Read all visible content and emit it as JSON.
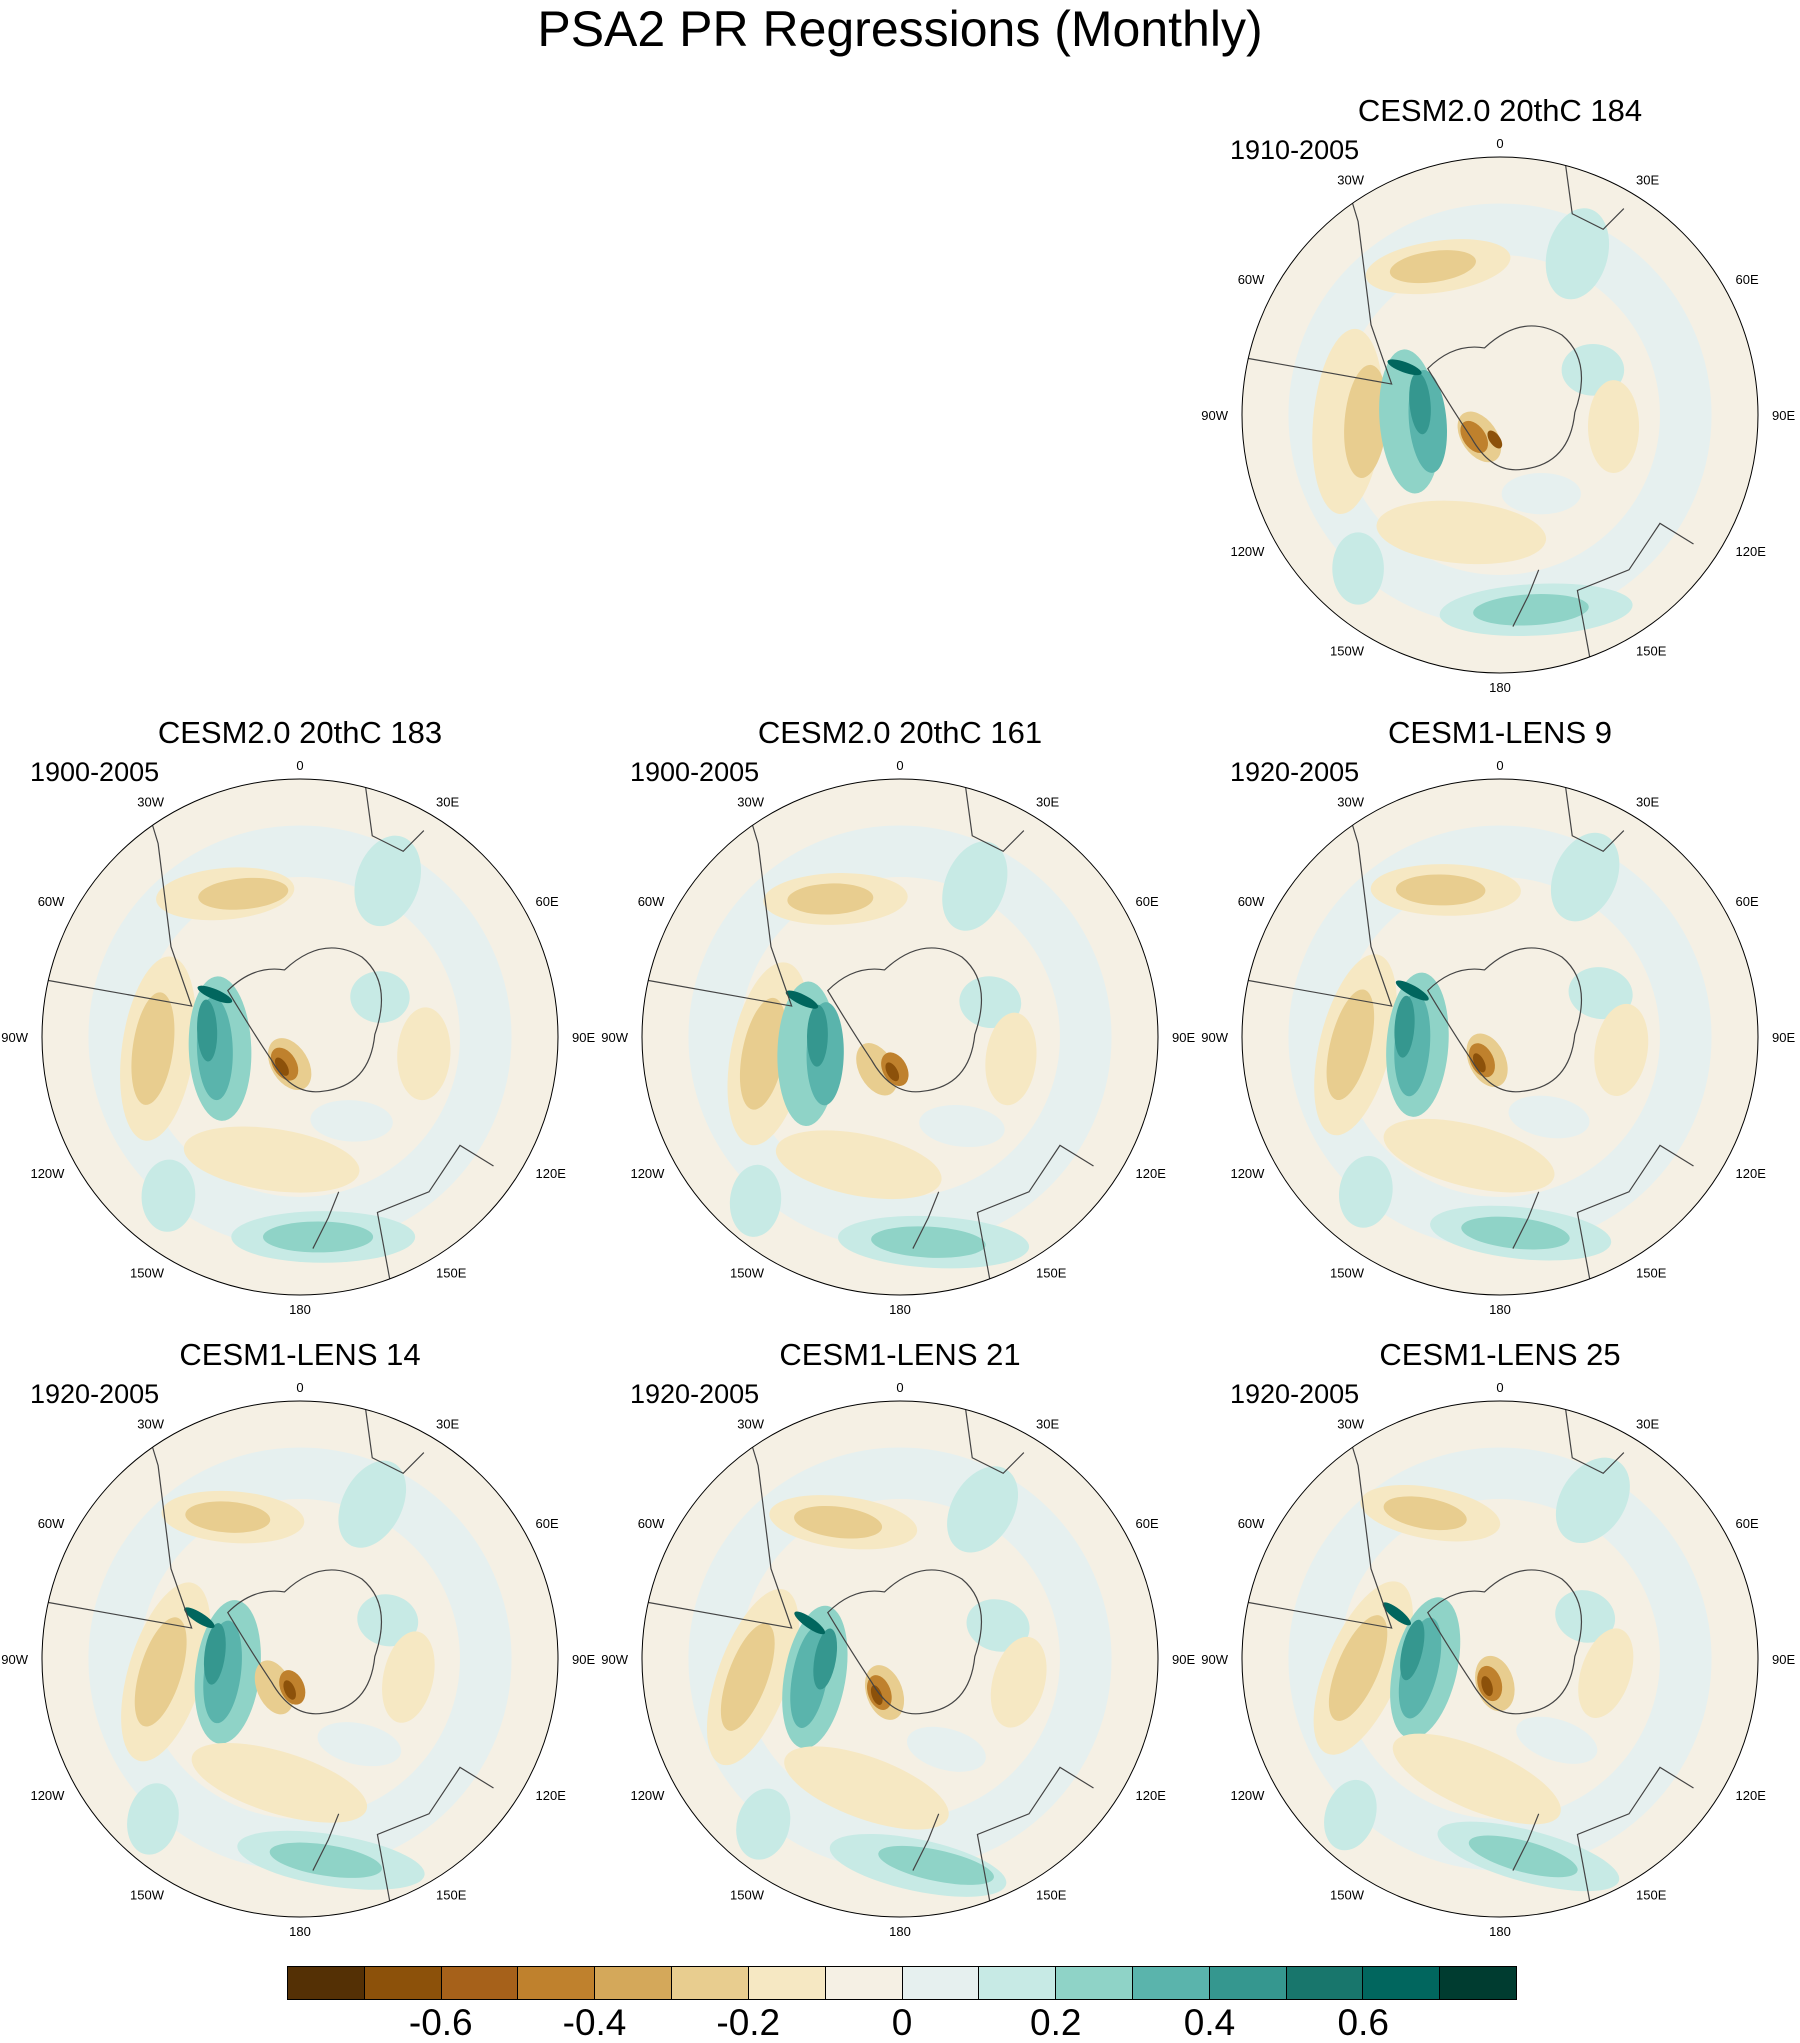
{
  "title": "PSA2 PR Regressions (Monthly)",
  "longitude_labels": [
    "0",
    "30E",
    "60E",
    "90E",
    "120E",
    "150E",
    "180",
    "150W",
    "120W",
    "90W",
    "60W",
    "30W"
  ],
  "panels": [
    {
      "title": "CESM2.0 20thC 184",
      "period": "1910-2005"
    },
    {
      "title": "CESM2.0 20thC 183",
      "period": "1900-2005"
    },
    {
      "title": "CESM2.0 20thC 161",
      "period": "1900-2005"
    },
    {
      "title": "CESM1-LENS 9",
      "period": "1920-2005"
    },
    {
      "title": "CESM1-LENS 14",
      "period": "1920-2005"
    },
    {
      "title": "CESM1-LENS 21",
      "period": "1920-2005"
    },
    {
      "title": "CESM1-LENS 25",
      "period": "1920-2005"
    }
  ],
  "colorbar": {
    "colors": [
      "#543005",
      "#8c510a",
      "#a6611a",
      "#bf812d",
      "#d4a85a",
      "#e8cd8f",
      "#f6e8c3",
      "#f5f0e4",
      "#e6f0ef",
      "#c7eae5",
      "#8fd3c7",
      "#5ab4ac",
      "#35978f",
      "#18766c",
      "#01665e",
      "#003c30"
    ],
    "labels": [
      "-0.6",
      "-0.4",
      "-0.2",
      "0",
      "0.2",
      "0.4",
      "0.6"
    ]
  }
}
